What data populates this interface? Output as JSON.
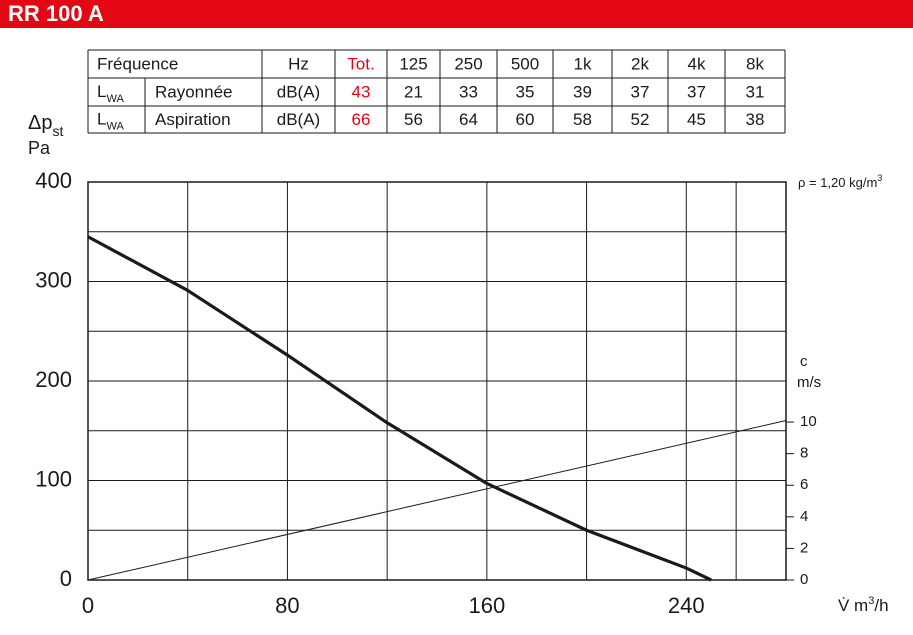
{
  "header": {
    "title": "RR 100 A"
  },
  "table": {
    "header": [
      "Fréquence",
      "Hz",
      "Tot.",
      "125",
      "250",
      "500",
      "1k",
      "2k",
      "4k",
      "8k"
    ],
    "rows": [
      {
        "symbol": {
          "main": "L",
          "sub": "WA"
        },
        "name": "Rayonnée",
        "unit": "dB(A)",
        "total": 43,
        "values": [
          21,
          33,
          35,
          39,
          37,
          37,
          31
        ]
      },
      {
        "symbol": {
          "main": "L",
          "sub": "WA"
        },
        "name": "Aspiration",
        "unit": "dB(A)",
        "total": 66,
        "values": [
          56,
          64,
          60,
          58,
          52,
          45,
          38
        ]
      }
    ],
    "total_color": "#e30613"
  },
  "chart_data": {
    "type": "line",
    "y_label": {
      "main": "Δp",
      "sub": "st",
      "unit": "Pa"
    },
    "y2_label": {
      "symbol": "c",
      "unit": "m/s"
    },
    "x_label": {
      "main": "V̇ m",
      "sup": "3",
      "end": "/h"
    },
    "annotation": {
      "main": "ρ = 1,20 kg/m",
      "sup": "3"
    },
    "xlim": [
      0,
      280
    ],
    "xticks": [
      0,
      80,
      160,
      240
    ],
    "ylim": [
      0,
      400
    ],
    "yticks": [
      0,
      100,
      200,
      300,
      400
    ],
    "y2lim": [
      0,
      25.2
    ],
    "y2ticks": [
      0,
      2,
      4,
      6,
      8,
      10
    ],
    "grid": true,
    "series": [
      {
        "color": "#1a1a1a",
        "x": [
          0,
          40,
          80,
          120,
          160,
          200,
          240,
          250
        ],
        "values": [
          345,
          291,
          226,
          158,
          97,
          50,
          12,
          0
        ]
      },
      {
        "color": "#1a1a1a",
        "axis": "y2",
        "x": [
          0,
          280
        ],
        "values": [
          0,
          10.1
        ]
      }
    ]
  }
}
